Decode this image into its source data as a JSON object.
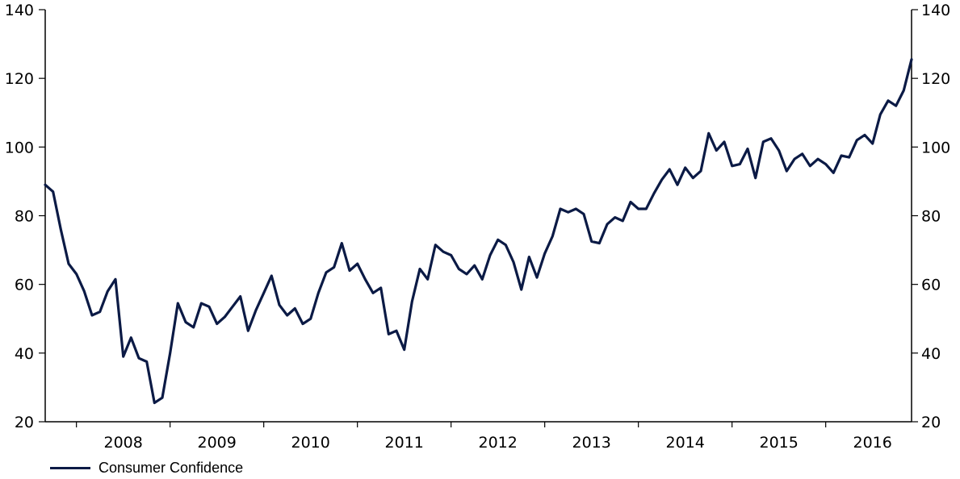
{
  "chart_data": {
    "type": "line",
    "title": "",
    "xlabel": "",
    "ylabel": "",
    "ylim": [
      20,
      140
    ],
    "yticks": [
      20,
      40,
      60,
      80,
      100,
      120,
      140
    ],
    "year_labels": [
      "2008",
      "2009",
      "2010",
      "2011",
      "2012",
      "2013",
      "2014",
      "2015",
      "2016"
    ],
    "grid": false,
    "legend_position": "bottom-left",
    "x_start": "2007-09",
    "x_end": "2016-12",
    "series": [
      {
        "name": "Consumer Confidence",
        "color": "#0b1a45",
        "x": [
          "2007-09",
          "2007-10",
          "2007-11",
          "2007-12",
          "2008-01",
          "2008-02",
          "2008-03",
          "2008-04",
          "2008-05",
          "2008-06",
          "2008-07",
          "2008-08",
          "2008-09",
          "2008-10",
          "2008-11",
          "2008-12",
          "2009-01",
          "2009-02",
          "2009-03",
          "2009-04",
          "2009-05",
          "2009-06",
          "2009-07",
          "2009-08",
          "2009-09",
          "2009-10",
          "2009-11",
          "2009-12",
          "2010-01",
          "2010-02",
          "2010-03",
          "2010-04",
          "2010-05",
          "2010-06",
          "2010-07",
          "2010-08",
          "2010-09",
          "2010-10",
          "2010-11",
          "2010-12",
          "2011-01",
          "2011-02",
          "2011-03",
          "2011-04",
          "2011-05",
          "2011-06",
          "2011-07",
          "2011-08",
          "2011-09",
          "2011-10",
          "2011-11",
          "2011-12",
          "2012-01",
          "2012-02",
          "2012-03",
          "2012-04",
          "2012-05",
          "2012-06",
          "2012-07",
          "2012-08",
          "2012-09",
          "2012-10",
          "2012-11",
          "2012-12",
          "2013-01",
          "2013-02",
          "2013-03",
          "2013-04",
          "2013-05",
          "2013-06",
          "2013-07",
          "2013-08",
          "2013-09",
          "2013-10",
          "2013-11",
          "2013-12",
          "2014-01",
          "2014-02",
          "2014-03",
          "2014-04",
          "2014-05",
          "2014-06",
          "2014-07",
          "2014-08",
          "2014-09",
          "2014-10",
          "2014-11",
          "2014-12",
          "2015-01",
          "2015-02",
          "2015-03",
          "2015-04",
          "2015-05",
          "2015-06",
          "2015-07",
          "2015-08",
          "2015-09",
          "2015-10",
          "2015-11",
          "2015-12",
          "2016-01",
          "2016-02",
          "2016-03",
          "2016-04",
          "2016-05",
          "2016-06",
          "2016-07",
          "2016-08",
          "2016-09",
          "2016-10",
          "2016-11",
          "2016-12"
        ],
        "values": [
          89,
          87,
          76,
          66,
          63,
          58,
          51,
          52,
          58,
          61.5,
          39,
          44.5,
          38.5,
          37.5,
          25.5,
          27,
          40,
          54.5,
          49,
          47.5,
          54.5,
          53.5,
          48.5,
          50.5,
          53.5,
          56.5,
          46.5,
          52.5,
          57.5,
          62.5,
          54,
          51,
          53,
          48.5,
          50,
          57.5,
          63.5,
          65,
          72,
          64,
          66,
          61.5,
          57.5,
          59,
          45.5,
          46.5,
          41,
          55,
          64.5,
          61.5,
          71.5,
          69.5,
          68.5,
          64.5,
          63,
          65.5,
          61.5,
          68.5,
          73,
          71.5,
          66.5,
          58.5,
          68,
          62,
          69,
          74,
          82,
          81,
          82,
          80.5,
          72.5,
          72,
          77.5,
          79.5,
          78.5,
          84,
          82,
          82,
          86.5,
          90.5,
          93.5,
          89,
          94,
          91,
          93,
          104,
          99,
          101.5,
          94.5,
          95,
          99.5,
          91,
          101.5,
          102.5,
          99,
          93,
          96.5,
          98,
          94.5,
          96.5,
          95,
          92.5,
          97.5,
          97,
          102,
          103.5,
          101,
          109.5,
          113.5,
          112,
          116.5,
          125.5
        ]
      }
    ]
  }
}
